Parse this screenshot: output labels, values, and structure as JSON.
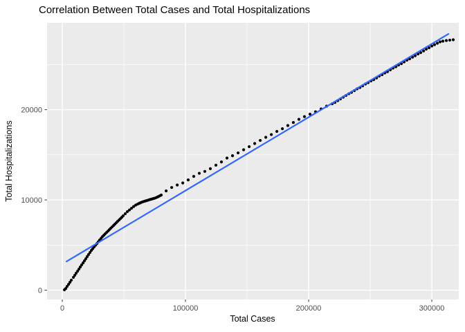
{
  "chart_data": {
    "type": "scatter",
    "title": "Correlation Between Total Cases and Total Hospitalizations",
    "xlabel": "Total Cases",
    "ylabel": "Total Hospitalizations",
    "xlim": [
      -12400,
      321900
    ],
    "ylim": [
      -1030,
      29620
    ],
    "x_ticks": [
      0,
      100000,
      200000,
      300000
    ],
    "x_tick_labels": [
      "0",
      "100000",
      "200000",
      "300000"
    ],
    "x_minor_gridlines": [
      50000,
      150000,
      250000
    ],
    "y_ticks": [
      0,
      10000,
      20000
    ],
    "y_tick_labels": [
      "0",
      "10000",
      "20000"
    ],
    "y_minor_gridlines": [
      5000,
      15000,
      25000
    ],
    "grid": "major and minor gridlines on, white on gray panel",
    "legend_position": "none",
    "colors": {
      "panel_background": "#EBEBEB",
      "gridline": "#FFFFFF",
      "point": "#000000",
      "smooth_line": "#3366FF",
      "tick_label": "#4D4D4D",
      "tick_mark": "#333333",
      "title_text": "#000000"
    },
    "series": [
      {
        "name": "observations",
        "type": "scatter",
        "color": "#000000",
        "points": [
          [
            1700,
            40
          ],
          [
            2800,
            190
          ],
          [
            3900,
            420
          ],
          [
            5100,
            650
          ],
          [
            6200,
            880
          ],
          [
            7300,
            1110
          ],
          [
            9000,
            1420
          ],
          [
            10100,
            1650
          ],
          [
            11200,
            1880
          ],
          [
            12400,
            2110
          ],
          [
            13500,
            2340
          ],
          [
            14600,
            2570
          ],
          [
            15700,
            2800
          ],
          [
            16900,
            3030
          ],
          [
            18000,
            3260
          ],
          [
            19100,
            3490
          ],
          [
            20200,
            3720
          ],
          [
            21300,
            3950
          ],
          [
            22500,
            4180
          ],
          [
            23600,
            4410
          ],
          [
            24700,
            4600
          ],
          [
            25800,
            4790
          ],
          [
            27000,
            4980
          ],
          [
            28100,
            5170
          ],
          [
            29200,
            5360
          ],
          [
            30300,
            5560
          ],
          [
            31500,
            5750
          ],
          [
            32600,
            5940
          ],
          [
            33700,
            6090
          ],
          [
            34800,
            6250
          ],
          [
            36000,
            6400
          ],
          [
            37100,
            6550
          ],
          [
            38200,
            6710
          ],
          [
            39300,
            6860
          ],
          [
            40400,
            7010
          ],
          [
            41600,
            7170
          ],
          [
            42700,
            7320
          ],
          [
            43800,
            7470
          ],
          [
            44900,
            7630
          ],
          [
            46100,
            7780
          ],
          [
            47200,
            7930
          ],
          [
            48300,
            8080
          ],
          [
            49400,
            8240
          ],
          [
            51100,
            8470
          ],
          [
            52800,
            8700
          ],
          [
            54500,
            8890
          ],
          [
            56200,
            9080
          ],
          [
            57900,
            9270
          ],
          [
            59600,
            9430
          ],
          [
            61200,
            9540
          ],
          [
            62400,
            9620
          ],
          [
            63500,
            9690
          ],
          [
            64600,
            9760
          ],
          [
            65700,
            9810
          ],
          [
            66900,
            9860
          ],
          [
            68000,
            9910
          ],
          [
            69100,
            9950
          ],
          [
            70200,
            10000
          ],
          [
            71300,
            10050
          ],
          [
            72500,
            10090
          ],
          [
            73600,
            10140
          ],
          [
            74700,
            10180
          ],
          [
            75800,
            10230
          ],
          [
            77000,
            10310
          ],
          [
            78100,
            10380
          ],
          [
            79200,
            10460
          ],
          [
            80300,
            10540
          ],
          [
            84300,
            11000
          ],
          [
            88800,
            11380
          ],
          [
            93300,
            11650
          ],
          [
            97800,
            11880
          ],
          [
            102200,
            12220
          ],
          [
            106700,
            12610
          ],
          [
            111200,
            12950
          ],
          [
            115700,
            13160
          ],
          [
            120200,
            13460
          ],
          [
            124700,
            13850
          ],
          [
            129200,
            14210
          ],
          [
            133700,
            14640
          ],
          [
            138200,
            14900
          ],
          [
            142700,
            15210
          ],
          [
            147200,
            15560
          ],
          [
            151700,
            15900
          ],
          [
            156200,
            16250
          ],
          [
            160700,
            16590
          ],
          [
            165200,
            16940
          ],
          [
            169700,
            17240
          ],
          [
            174200,
            17590
          ],
          [
            178700,
            17890
          ],
          [
            183100,
            18240
          ],
          [
            187600,
            18580
          ],
          [
            192100,
            18930
          ],
          [
            196600,
            19230
          ],
          [
            201100,
            19500
          ],
          [
            205600,
            19770
          ],
          [
            210100,
            20080
          ],
          [
            214600,
            20390
          ],
          [
            219100,
            20650
          ],
          [
            221300,
            20800
          ],
          [
            223600,
            21000
          ],
          [
            225800,
            21190
          ],
          [
            228100,
            21380
          ],
          [
            230300,
            21570
          ],
          [
            232600,
            21760
          ],
          [
            234800,
            21920
          ],
          [
            237100,
            22110
          ],
          [
            239300,
            22300
          ],
          [
            241600,
            22450
          ],
          [
            243800,
            22640
          ],
          [
            246100,
            22840
          ],
          [
            248300,
            22990
          ],
          [
            250600,
            23180
          ],
          [
            252800,
            23330
          ],
          [
            255100,
            23520
          ],
          [
            257300,
            23720
          ],
          [
            259600,
            23870
          ],
          [
            261800,
            24060
          ],
          [
            264000,
            24210
          ],
          [
            266300,
            24410
          ],
          [
            268500,
            24600
          ],
          [
            270800,
            24750
          ],
          [
            273000,
            24940
          ],
          [
            275300,
            25100
          ],
          [
            277500,
            25290
          ],
          [
            279800,
            25480
          ],
          [
            282000,
            25630
          ],
          [
            284300,
            25820
          ],
          [
            286500,
            25980
          ],
          [
            288800,
            26170
          ],
          [
            291000,
            26320
          ],
          [
            293300,
            26510
          ],
          [
            295500,
            26710
          ],
          [
            297800,
            26860
          ],
          [
            300000,
            27050
          ],
          [
            302200,
            27200
          ],
          [
            304500,
            27360
          ],
          [
            306700,
            27510
          ],
          [
            309000,
            27590
          ],
          [
            311800,
            27660
          ],
          [
            314600,
            27700
          ],
          [
            317400,
            27740
          ]
        ]
      },
      {
        "name": "linear-fit",
        "type": "line",
        "color": "#3366FF",
        "points": [
          [
            3400,
            3180
          ],
          [
            313500,
            28390
          ]
        ]
      }
    ]
  }
}
